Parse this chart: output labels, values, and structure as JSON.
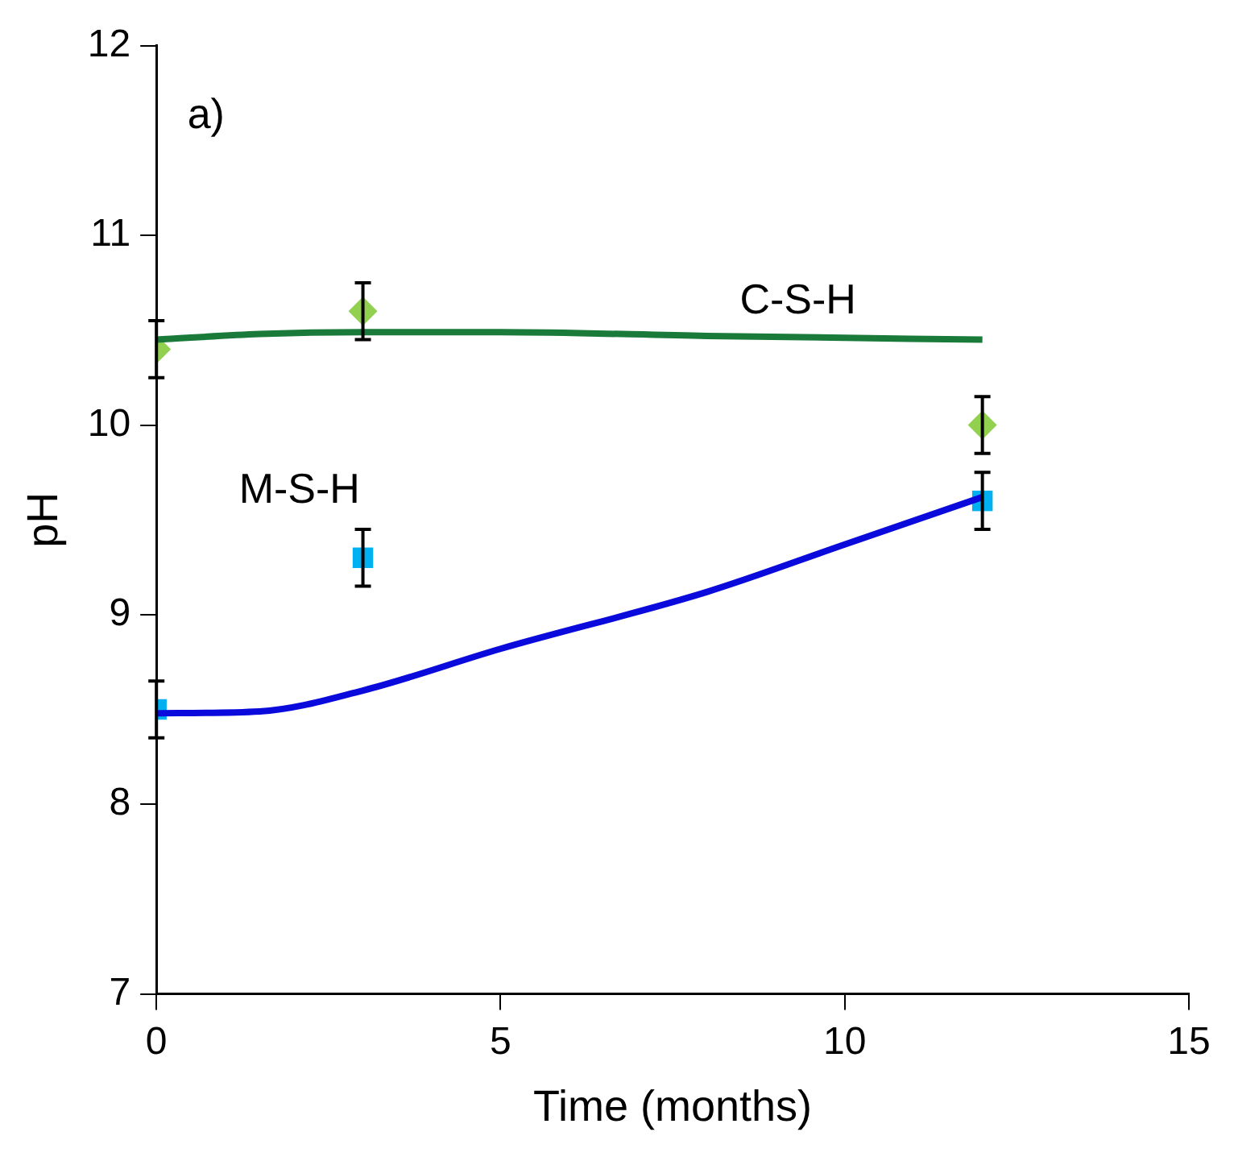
{
  "chart_data": {
    "type": "scatter",
    "xlabel": "Time (months)",
    "ylabel": "pH",
    "xlim": [
      0,
      15
    ],
    "xticks": [
      0,
      5,
      10,
      15
    ],
    "ylim": [
      7,
      12
    ],
    "yticks": [
      7,
      8,
      9,
      10,
      11,
      12
    ],
    "grid": false,
    "legend": false,
    "annotations": [
      "a)",
      "C-S-H",
      "M-S-H"
    ],
    "series": [
      {
        "type": "line",
        "color": "#1a7a3a",
        "marker": "none",
        "line_style": "solid",
        "x": [
          0,
          1.5,
          3,
          5,
          8,
          12
        ],
        "values": [
          10.45,
          10.48,
          10.49,
          10.49,
          10.47,
          10.45
        ]
      },
      {
        "type": "line",
        "color": "#0a0adc",
        "marker": "none",
        "line_style": "solid",
        "x": [
          0,
          1.5,
          3,
          5,
          8,
          10,
          12
        ],
        "values": [
          8.48,
          8.49,
          8.6,
          8.82,
          9.12,
          9.37,
          9.62
        ]
      },
      {
        "type": "scatter",
        "color": "#92d050",
        "marker": "diamond",
        "x": [
          0,
          3,
          12
        ],
        "values": [
          10.4,
          10.6,
          10.0
        ],
        "errors": [
          0.15,
          0.15,
          0.15
        ]
      },
      {
        "type": "scatter",
        "color": "#00b0f0",
        "marker": "square",
        "x": [
          0,
          3,
          12
        ],
        "values": [
          8.5,
          9.3,
          9.6
        ],
        "errors": [
          0.15,
          0.15,
          0.15
        ]
      }
    ]
  }
}
